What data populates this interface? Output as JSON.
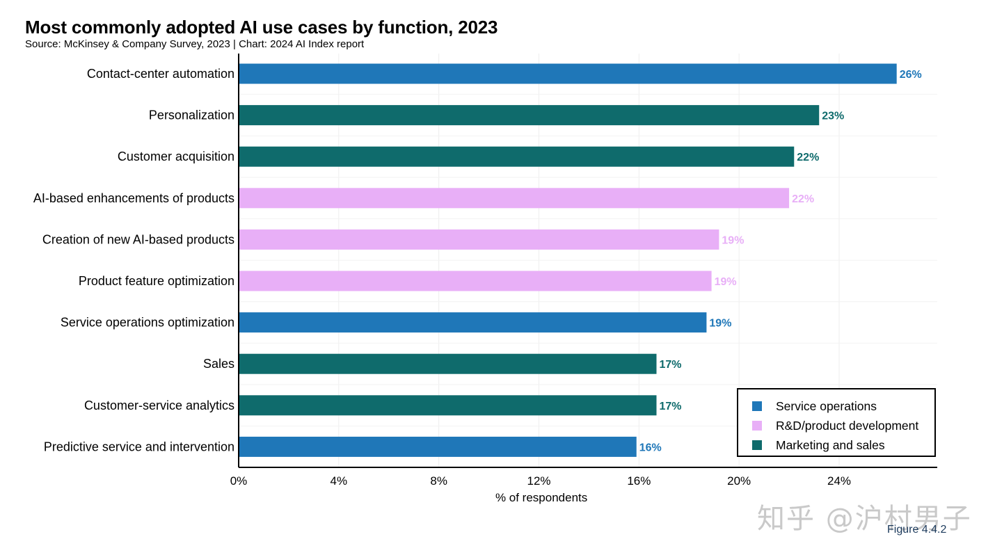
{
  "header": {
    "title": "Most commonly adopted AI use cases by function, 2023",
    "subtitle": "Source: McKinsey & Company Survey, 2023 | Chart: 2024 AI Index report"
  },
  "colors": {
    "Service operations": "#1f77b8",
    "R&D/product development": "#e8aff7",
    "Marketing and sales": "#0f6b6c"
  },
  "chart_data": {
    "type": "bar",
    "orientation": "horizontal",
    "title": "Most commonly adopted AI use cases by function, 2023",
    "xlabel": "% of respondents",
    "ylabel": "",
    "xlim": [
      0,
      28
    ],
    "xticks": [
      0,
      4,
      8,
      12,
      16,
      20,
      24
    ],
    "xtick_labels": [
      "0%",
      "4%",
      "8%",
      "12%",
      "16%",
      "20%",
      "24%"
    ],
    "grid": true,
    "legend_position": "bottom-right",
    "categories": [
      "Contact-center automation",
      "Personalization",
      "Customer acquisition",
      "AI-based enhancements of products",
      "Creation of new AI-based products",
      "Product feature optimization",
      "Service operations optimization",
      "Sales",
      "Customer-service analytics",
      "Predictive service and intervention"
    ],
    "values": [
      26.3,
      23.2,
      22.2,
      22.0,
      19.2,
      18.9,
      18.7,
      16.7,
      16.7,
      15.9
    ],
    "value_labels": [
      "26%",
      "23%",
      "22%",
      "22%",
      "19%",
      "19%",
      "19%",
      "17%",
      "17%",
      "16%"
    ],
    "groups": [
      "Service operations",
      "Marketing and sales",
      "Marketing and sales",
      "R&D/product development",
      "R&D/product development",
      "R&D/product development",
      "Service operations",
      "Marketing and sales",
      "Marketing and sales",
      "Service operations"
    ],
    "legend": [
      "Service operations",
      "R&D/product development",
      "Marketing and sales"
    ]
  },
  "watermark": "知乎 @沪村男子",
  "figure_label": "Figure 4.4.2"
}
